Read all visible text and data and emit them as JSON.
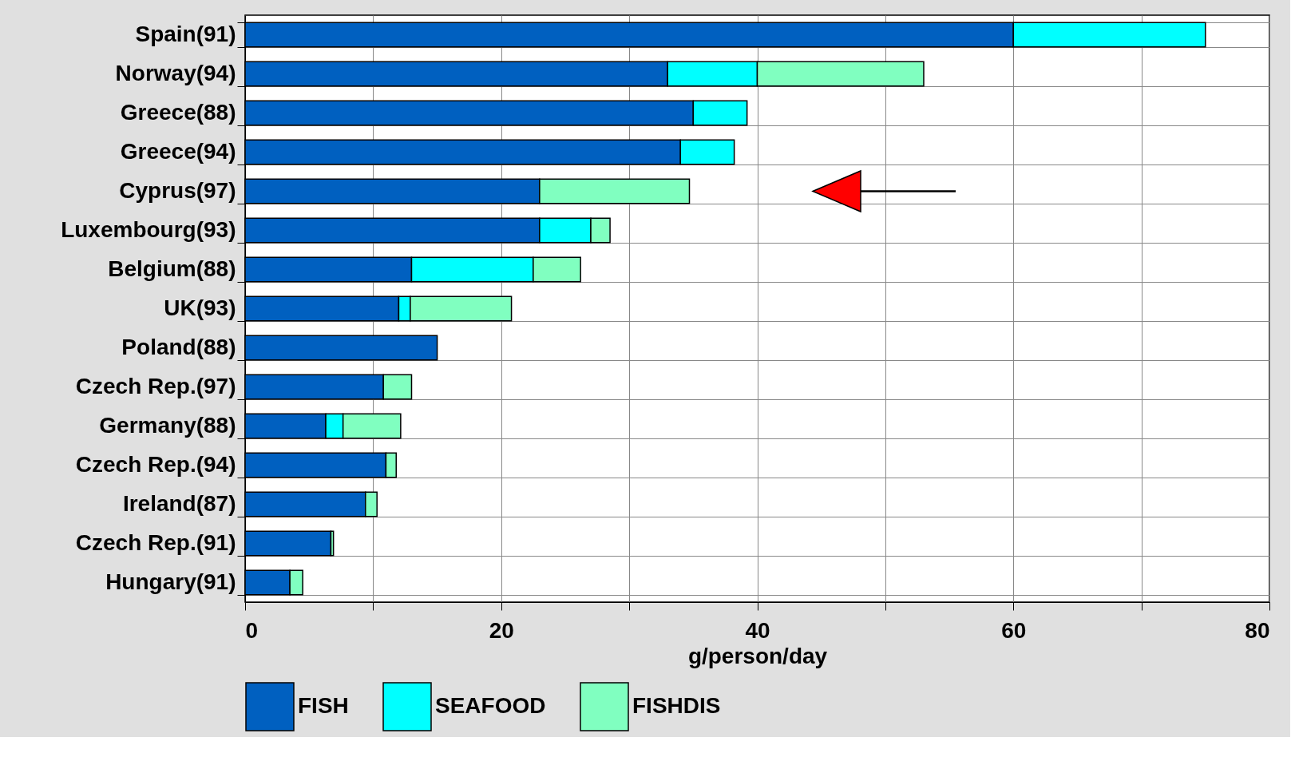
{
  "chart_data": {
    "type": "bar",
    "orientation": "horizontal",
    "stacked": true,
    "categories": [
      "Spain(91)",
      "Norway(94)",
      "Greece(88)",
      "Greece(94)",
      "Cyprus(97)",
      "Luxembourg(93)",
      "Belgium(88)",
      "UK(93)",
      "Poland(88)",
      "Czech Rep.(97)",
      "Germany(88)",
      "Czech Rep.(94)",
      "Ireland(87)",
      "Czech Rep.(91)",
      "Hungary(91)"
    ],
    "series": [
      {
        "name": "FISH",
        "color": "#0060c0",
        "values": [
          60,
          33,
          35,
          34,
          23,
          23,
          13,
          12,
          15,
          10.8,
          6.3,
          11,
          9.4,
          6.7,
          3.5
        ]
      },
      {
        "name": "SEAFOOD",
        "color": "#00ffff",
        "values": [
          15,
          7,
          4.2,
          4.2,
          null,
          4,
          9.5,
          0.9,
          null,
          null,
          1.35,
          null,
          null,
          null,
          null
        ]
      },
      {
        "name": "FISHDIS",
        "color": "#80ffc0",
        "values": [
          null,
          13,
          null,
          null,
          11.7,
          1.5,
          3.7,
          7.9,
          null,
          2.2,
          4.5,
          0.8,
          0.9,
          0.2,
          1.0
        ]
      }
    ],
    "xlabel": "g/person/day",
    "xlim": [
      0,
      80
    ],
    "xticks": [
      0,
      {
        "value": 10,
        "label": null
      },
      20,
      {
        "value": 30,
        "label": null
      },
      40,
      {
        "value": 50,
        "label": null
      },
      60,
      {
        "value": 70,
        "label": null
      },
      80
    ],
    "grid": true,
    "legend": "bottom"
  }
}
